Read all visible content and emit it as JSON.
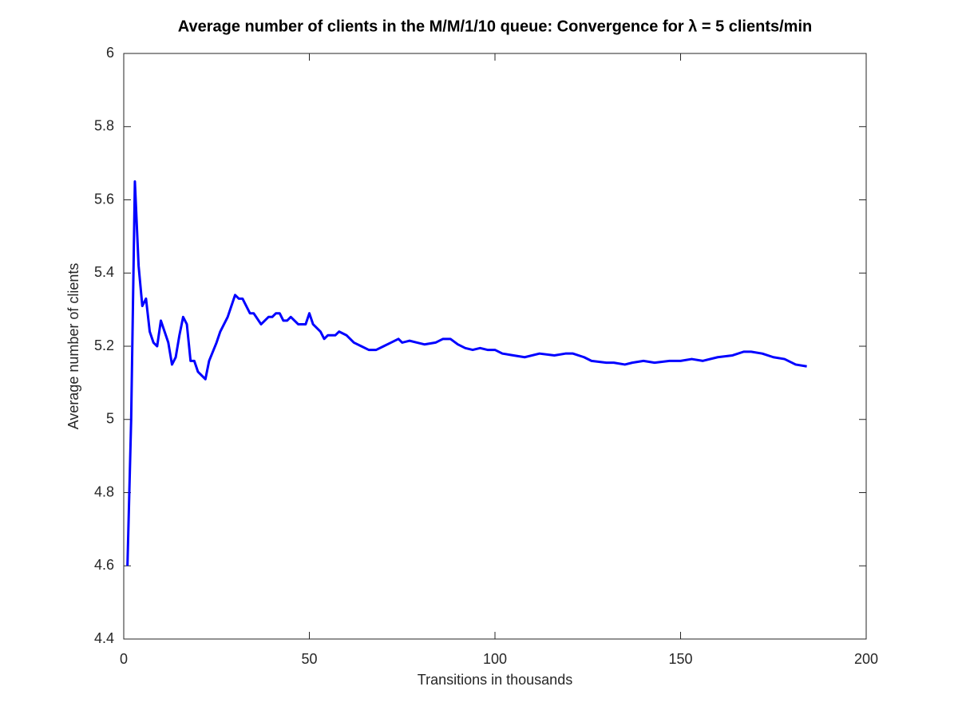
{
  "chart_data": {
    "type": "line",
    "title": "Average number of clients in the M/M/1/10 queue: Convergence for λ = 5 clients/min",
    "x_label": "Transitions in thousands",
    "y_label": "Average number of clients",
    "color": "#0000ff",
    "x": [
      1,
      2,
      3,
      4,
      5,
      6,
      7,
      8,
      9,
      10,
      11,
      12,
      13,
      14,
      15,
      16,
      17,
      18,
      19,
      20,
      22,
      23,
      25,
      26,
      28,
      29,
      30,
      31,
      32,
      34,
      35,
      37,
      39,
      40,
      41,
      42,
      43,
      44,
      45,
      47,
      48,
      49,
      50,
      51,
      53,
      54,
      55,
      57,
      58,
      60,
      62,
      64,
      66,
      68,
      70,
      72,
      74,
      75,
      77,
      79,
      81,
      84,
      86,
      88,
      90,
      92,
      94,
      96,
      98,
      100,
      102,
      105,
      108,
      112,
      116,
      119,
      121,
      124,
      126,
      130,
      132,
      135,
      137,
      140,
      143,
      147,
      150,
      153,
      156,
      160,
      164,
      167,
      169,
      172,
      175,
      178,
      181,
      184
    ],
    "values": [
      4.6,
      5.0,
      5.65,
      5.42,
      5.31,
      5.33,
      5.24,
      5.21,
      5.2,
      5.27,
      5.24,
      5.21,
      5.15,
      5.17,
      5.23,
      5.28,
      5.26,
      5.16,
      5.16,
      5.13,
      5.11,
      5.16,
      5.21,
      5.24,
      5.28,
      5.31,
      5.34,
      5.33,
      5.33,
      5.29,
      5.29,
      5.26,
      5.28,
      5.28,
      5.29,
      5.29,
      5.27,
      5.27,
      5.28,
      5.26,
      5.26,
      5.26,
      5.29,
      5.26,
      5.24,
      5.22,
      5.23,
      5.23,
      5.24,
      5.23,
      5.21,
      5.2,
      5.19,
      5.19,
      5.2,
      5.21,
      5.22,
      5.21,
      5.215,
      5.21,
      5.205,
      5.21,
      5.22,
      5.22,
      5.205,
      5.195,
      5.19,
      5.195,
      5.19,
      5.19,
      5.18,
      5.175,
      5.17,
      5.18,
      5.175,
      5.18,
      5.18,
      5.17,
      5.16,
      5.155,
      5.155,
      5.15,
      5.155,
      5.16,
      5.155,
      5.16,
      5.16,
      5.165,
      5.16,
      5.17,
      5.175,
      5.185,
      5.185,
      5.18,
      5.17,
      5.165,
      5.15,
      5.145
    ],
    "xlim": [
      0,
      200
    ],
    "xticks": [
      0,
      50,
      100,
      150,
      200
    ],
    "ylim": [
      4.4,
      6
    ],
    "yticks": [
      4.4,
      4.6,
      4.8,
      5,
      5.2,
      5.4,
      5.6,
      5.8,
      6
    ]
  }
}
